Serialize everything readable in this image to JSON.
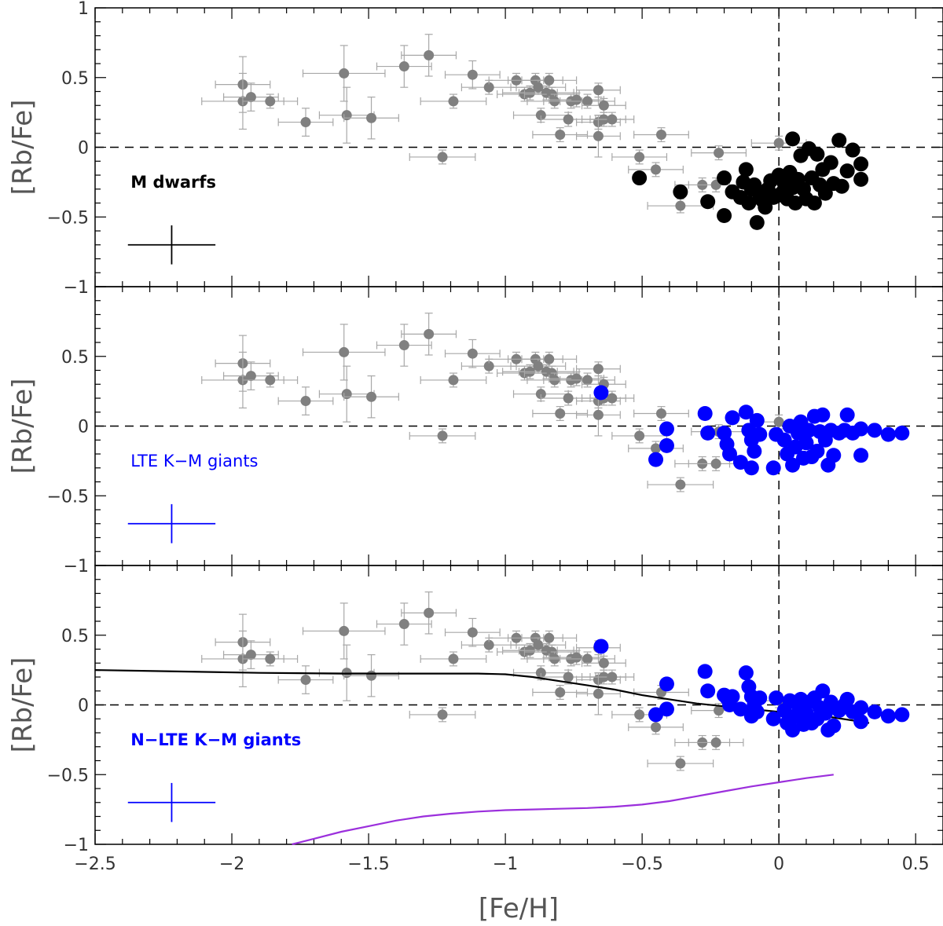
{
  "colors": {
    "literature": "#808080",
    "literature_err": "#a8a8a8",
    "m_dwarfs": "#000000",
    "giants": "#0000ff",
    "gce_model": "#000000",
    "second_model": "#9b2fdc",
    "frame": "#000000"
  },
  "chart_data": {
    "type": "scatter",
    "layout": "three stacked panels sharing the x axis",
    "xlabel": "[Fe/H]",
    "xlim": [
      -2.5,
      0.6
    ],
    "x_ticks": [
      -2.5,
      -2,
      -1.5,
      -1,
      -0.5,
      0,
      0.5
    ],
    "x_tick_labels": [
      "−2.5",
      "−2",
      "−1.5",
      "−1",
      "−0.5",
      "0",
      "0.5"
    ],
    "literature": {
      "name": "literature stars (grey)",
      "points": [
        {
          "x": -1.96,
          "y": 0.45,
          "xe": 0.1,
          "ye": 0.2
        },
        {
          "x": -1.96,
          "y": 0.33,
          "xe": 0.15,
          "ye": 0.2
        },
        {
          "x": -1.93,
          "y": 0.36,
          "xe": 0.1,
          "ye": 0.1
        },
        {
          "x": -1.86,
          "y": 0.33,
          "xe": 0.1,
          "ye": 0.05
        },
        {
          "x": -1.73,
          "y": 0.18,
          "xe": 0.1,
          "ye": 0.1
        },
        {
          "x": -1.59,
          "y": 0.53,
          "xe": 0.15,
          "ye": 0.2
        },
        {
          "x": -1.58,
          "y": 0.23,
          "xe": 0.1,
          "ye": 0.2
        },
        {
          "x": -1.49,
          "y": 0.21,
          "xe": 0.1,
          "ye": 0.15
        },
        {
          "x": -1.37,
          "y": 0.58,
          "xe": 0.1,
          "ye": 0.15
        },
        {
          "x": -1.28,
          "y": 0.66,
          "xe": 0.1,
          "ye": 0.15
        },
        {
          "x": -1.23,
          "y": -0.07,
          "xe": 0.12,
          "ye": 0.05
        },
        {
          "x": -1.19,
          "y": 0.33,
          "xe": 0.12,
          "ye": 0.05
        },
        {
          "x": -1.12,
          "y": 0.52,
          "xe": 0.1,
          "ye": 0.1
        },
        {
          "x": -1.06,
          "y": 0.43,
          "xe": 0.1,
          "ye": 0.05
        },
        {
          "x": -0.96,
          "y": 0.48,
          "xe": 0.1,
          "ye": 0.05
        },
        {
          "x": -0.93,
          "y": 0.38,
          "xe": 0.1,
          "ye": 0.05
        },
        {
          "x": -0.91,
          "y": 0.39,
          "xe": 0.1,
          "ye": 0.05
        },
        {
          "x": -0.89,
          "y": 0.48,
          "xe": 0.1,
          "ye": 0.05
        },
        {
          "x": -0.88,
          "y": 0.43,
          "xe": 0.1,
          "ye": 0.05
        },
        {
          "x": -0.87,
          "y": 0.23,
          "xe": 0.1,
          "ye": 0.05
        },
        {
          "x": -0.85,
          "y": 0.39,
          "xe": 0.1,
          "ye": 0.05
        },
        {
          "x": -0.84,
          "y": 0.48,
          "xe": 0.1,
          "ye": 0.05
        },
        {
          "x": -0.83,
          "y": 0.38,
          "xe": 0.1,
          "ye": 0.05
        },
        {
          "x": -0.82,
          "y": 0.33,
          "xe": 0.1,
          "ye": 0.05
        },
        {
          "x": -0.8,
          "y": 0.09,
          "xe": 0.1,
          "ye": 0.05
        },
        {
          "x": -0.77,
          "y": 0.2,
          "xe": 0.1,
          "ye": 0.05
        },
        {
          "x": -0.76,
          "y": 0.33,
          "xe": 0.1,
          "ye": 0.05
        },
        {
          "x": -0.74,
          "y": 0.34,
          "xe": 0.1,
          "ye": 0.05
        },
        {
          "x": -0.7,
          "y": 0.33,
          "xe": 0.1,
          "ye": 0.05
        },
        {
          "x": -0.66,
          "y": 0.41,
          "xe": 0.08,
          "ye": 0.05
        },
        {
          "x": -0.66,
          "y": 0.18,
          "xe": 0.08,
          "ye": 0.05
        },
        {
          "x": -0.66,
          "y": 0.08,
          "xe": 0.08,
          "ye": 0.15
        },
        {
          "x": -0.64,
          "y": 0.3,
          "xe": 0.08,
          "ye": 0.05
        },
        {
          "x": -0.64,
          "y": 0.2,
          "xe": 0.08,
          "ye": 0.05
        },
        {
          "x": -0.61,
          "y": 0.2,
          "xe": 0.08,
          "ye": 0.05
        },
        {
          "x": -0.51,
          "y": -0.07,
          "xe": 0.1,
          "ye": 0.05
        },
        {
          "x": -0.45,
          "y": -0.16,
          "xe": 0.1,
          "ye": 0.05
        },
        {
          "x": -0.43,
          "y": 0.09,
          "xe": 0.1,
          "ye": 0.05
        },
        {
          "x": -0.36,
          "y": -0.42,
          "xe": 0.12,
          "ye": 0.05
        },
        {
          "x": -0.28,
          "y": -0.27,
          "xe": 0.1,
          "ye": 0.05
        },
        {
          "x": -0.23,
          "y": -0.27,
          "xe": 0.1,
          "ye": 0.05
        },
        {
          "x": -0.22,
          "y": -0.04,
          "xe": 0.1,
          "ye": 0.05
        },
        {
          "x": 0.0,
          "y": 0.03,
          "xe": 0.1,
          "ye": 0.05
        }
      ]
    },
    "panels": [
      {
        "id": "m-dwarfs",
        "ylabel": "[Rb/Fe]",
        "ylim": [
          -1,
          1
        ],
        "y_ticks": [
          -1,
          -0.5,
          0,
          0.5,
          1
        ],
        "y_tick_labels": [
          "−1",
          "−0.5",
          "0",
          "0.5",
          "1"
        ],
        "label": "M dwarfs",
        "label_color": "#000000",
        "marker_color": "#000000",
        "error_bar": {
          "x": -2.22,
          "y": -0.7,
          "xe": 0.16,
          "ye": 0.14
        },
        "points": [
          {
            "x": -0.51,
            "y": -0.22
          },
          {
            "x": -0.36,
            "y": -0.32
          },
          {
            "x": -0.26,
            "y": -0.39
          },
          {
            "x": -0.2,
            "y": -0.49
          },
          {
            "x": -0.2,
            "y": -0.22
          },
          {
            "x": -0.17,
            "y": -0.32
          },
          {
            "x": -0.14,
            "y": -0.36
          },
          {
            "x": -0.13,
            "y": -0.25
          },
          {
            "x": -0.12,
            "y": -0.16
          },
          {
            "x": -0.11,
            "y": -0.4
          },
          {
            "x": -0.1,
            "y": -0.3
          },
          {
            "x": -0.09,
            "y": -0.27
          },
          {
            "x": -0.08,
            "y": -0.54
          },
          {
            "x": -0.07,
            "y": -0.34
          },
          {
            "x": -0.06,
            "y": -0.38
          },
          {
            "x": -0.05,
            "y": -0.43
          },
          {
            "x": -0.04,
            "y": -0.3
          },
          {
            "x": -0.03,
            "y": -0.24
          },
          {
            "x": -0.02,
            "y": -0.36
          },
          {
            "x": -0.01,
            "y": -0.35
          },
          {
            "x": 0.0,
            "y": -0.2
          },
          {
            "x": 0.01,
            "y": -0.33
          },
          {
            "x": 0.02,
            "y": -0.26
          },
          {
            "x": 0.03,
            "y": -0.37
          },
          {
            "x": 0.04,
            "y": -0.18
          },
          {
            "x": 0.05,
            "y": 0.06
          },
          {
            "x": 0.05,
            "y": -0.29
          },
          {
            "x": 0.06,
            "y": -0.4
          },
          {
            "x": 0.07,
            "y": -0.23
          },
          {
            "x": 0.08,
            "y": -0.06
          },
          {
            "x": 0.09,
            "y": -0.3
          },
          {
            "x": 0.1,
            "y": -0.37
          },
          {
            "x": 0.11,
            "y": -0.01
          },
          {
            "x": 0.12,
            "y": -0.22
          },
          {
            "x": 0.13,
            "y": -0.4
          },
          {
            "x": 0.14,
            "y": -0.05
          },
          {
            "x": 0.15,
            "y": -0.27
          },
          {
            "x": 0.16,
            "y": -0.16
          },
          {
            "x": 0.17,
            "y": -0.33
          },
          {
            "x": 0.19,
            "y": -0.11
          },
          {
            "x": 0.2,
            "y": -0.26
          },
          {
            "x": 0.22,
            "y": 0.05
          },
          {
            "x": 0.23,
            "y": -0.28
          },
          {
            "x": 0.25,
            "y": -0.17
          },
          {
            "x": 0.27,
            "y": -0.02
          },
          {
            "x": 0.3,
            "y": -0.12
          },
          {
            "x": 0.3,
            "y": -0.23
          }
        ]
      },
      {
        "id": "lte-giants",
        "ylabel": "[Rb/Fe]",
        "ylim": [
          -1,
          1
        ],
        "y_ticks": [
          -1,
          -0.5,
          0,
          0.5
        ],
        "y_tick_labels": [
          "−1",
          "−0.5",
          "0",
          "0.5"
        ],
        "label": "LTE K−M giants",
        "label_color": "#0000ff",
        "marker_color": "#0000ff",
        "error_bar": {
          "x": -2.22,
          "y": -0.7,
          "xe": 0.16,
          "ye": 0.14
        },
        "points": [
          {
            "x": -0.65,
            "y": 0.24
          },
          {
            "x": -0.45,
            "y": -0.24
          },
          {
            "x": -0.41,
            "y": -0.02
          },
          {
            "x": -0.41,
            "y": -0.14
          },
          {
            "x": -0.27,
            "y": 0.09
          },
          {
            "x": -0.26,
            "y": -0.05
          },
          {
            "x": -0.2,
            "y": -0.05
          },
          {
            "x": -0.19,
            "y": -0.13
          },
          {
            "x": -0.18,
            "y": -0.2
          },
          {
            "x": -0.17,
            "y": 0.06
          },
          {
            "x": -0.14,
            "y": -0.26
          },
          {
            "x": -0.12,
            "y": 0.1
          },
          {
            "x": -0.11,
            "y": -0.03
          },
          {
            "x": -0.1,
            "y": -0.1
          },
          {
            "x": -0.1,
            "y": -0.3
          },
          {
            "x": -0.09,
            "y": -0.18
          },
          {
            "x": -0.08,
            "y": 0.04
          },
          {
            "x": -0.07,
            "y": -0.06
          },
          {
            "x": -0.02,
            "y": -0.3
          },
          {
            "x": -0.01,
            "y": -0.06
          },
          {
            "x": 0.02,
            "y": -0.1
          },
          {
            "x": 0.03,
            "y": -0.2
          },
          {
            "x": 0.04,
            "y": 0.0
          },
          {
            "x": 0.05,
            "y": -0.28
          },
          {
            "x": 0.06,
            "y": -0.15
          },
          {
            "x": 0.07,
            "y": -0.05
          },
          {
            "x": 0.08,
            "y": 0.03
          },
          {
            "x": 0.09,
            "y": -0.23
          },
          {
            "x": 0.1,
            "y": -0.12
          },
          {
            "x": 0.11,
            "y": -0.03
          },
          {
            "x": 0.12,
            "y": -0.22
          },
          {
            "x": 0.13,
            "y": 0.07
          },
          {
            "x": 0.14,
            "y": -0.18
          },
          {
            "x": 0.15,
            "y": -0.04
          },
          {
            "x": 0.16,
            "y": 0.08
          },
          {
            "x": 0.17,
            "y": -0.1
          },
          {
            "x": 0.18,
            "y": -0.28
          },
          {
            "x": 0.19,
            "y": -0.03
          },
          {
            "x": 0.2,
            "y": -0.21
          },
          {
            "x": 0.22,
            "y": -0.05
          },
          {
            "x": 0.24,
            "y": -0.03
          },
          {
            "x": 0.25,
            "y": 0.08
          },
          {
            "x": 0.27,
            "y": -0.05
          },
          {
            "x": 0.3,
            "y": -0.21
          },
          {
            "x": 0.3,
            "y": -0.02
          },
          {
            "x": 0.35,
            "y": -0.03
          },
          {
            "x": 0.4,
            "y": -0.06
          },
          {
            "x": 0.45,
            "y": -0.05
          }
        ]
      },
      {
        "id": "nlte-giants",
        "ylabel": "[Rb/Fe]",
        "ylim": [
          -1,
          1
        ],
        "y_ticks": [
          -1,
          -0.5,
          0,
          0.5
        ],
        "y_tick_labels": [
          "−1",
          "−0.5",
          "0",
          "0.5"
        ],
        "label": "N−LTE  K−M giants",
        "label_color": "#0000ff",
        "marker_color": "#0000ff",
        "error_bar": {
          "x": -2.22,
          "y": -0.7,
          "xe": 0.16,
          "ye": 0.14
        },
        "points": [
          {
            "x": -0.65,
            "y": 0.42
          },
          {
            "x": -0.45,
            "y": -0.07
          },
          {
            "x": -0.41,
            "y": -0.03
          },
          {
            "x": -0.41,
            "y": 0.15
          },
          {
            "x": -0.27,
            "y": 0.24
          },
          {
            "x": -0.26,
            "y": 0.1
          },
          {
            "x": -0.2,
            "y": 0.07
          },
          {
            "x": -0.19,
            "y": 0.05
          },
          {
            "x": -0.18,
            "y": 0.0
          },
          {
            "x": -0.17,
            "y": 0.06
          },
          {
            "x": -0.14,
            "y": -0.03
          },
          {
            "x": -0.12,
            "y": 0.23
          },
          {
            "x": -0.11,
            "y": 0.13
          },
          {
            "x": -0.1,
            "y": 0.06
          },
          {
            "x": -0.1,
            "y": -0.08
          },
          {
            "x": -0.09,
            "y": 0.0
          },
          {
            "x": -0.08,
            "y": -0.05
          },
          {
            "x": -0.07,
            "y": 0.05
          },
          {
            "x": -0.02,
            "y": -0.1
          },
          {
            "x": -0.01,
            "y": 0.05
          },
          {
            "x": 0.02,
            "y": -0.04
          },
          {
            "x": 0.03,
            "y": -0.13
          },
          {
            "x": 0.04,
            "y": 0.03
          },
          {
            "x": 0.05,
            "y": -0.18
          },
          {
            "x": 0.06,
            "y": -0.08
          },
          {
            "x": 0.07,
            "y": 0.0
          },
          {
            "x": 0.08,
            "y": 0.04
          },
          {
            "x": 0.09,
            "y": -0.14
          },
          {
            "x": 0.1,
            "y": -0.06
          },
          {
            "x": 0.11,
            "y": 0.02
          },
          {
            "x": 0.12,
            "y": -0.13
          },
          {
            "x": 0.13,
            "y": 0.05
          },
          {
            "x": 0.14,
            "y": -0.1
          },
          {
            "x": 0.15,
            "y": -0.02
          },
          {
            "x": 0.16,
            "y": 0.1
          },
          {
            "x": 0.17,
            "y": -0.06
          },
          {
            "x": 0.18,
            "y": -0.18
          },
          {
            "x": 0.19,
            "y": 0.02
          },
          {
            "x": 0.2,
            "y": -0.15
          },
          {
            "x": 0.22,
            "y": -0.04
          },
          {
            "x": 0.24,
            "y": 0.0
          },
          {
            "x": 0.25,
            "y": 0.04
          },
          {
            "x": 0.27,
            "y": -0.05
          },
          {
            "x": 0.3,
            "y": -0.12
          },
          {
            "x": 0.3,
            "y": -0.02
          },
          {
            "x": 0.35,
            "y": -0.05
          },
          {
            "x": 0.4,
            "y": -0.08
          },
          {
            "x": 0.45,
            "y": -0.07
          }
        ],
        "lines": [
          {
            "name": "GCE model",
            "color": "#000000",
            "x": [
              -2.5,
              -2.2,
              -1.9,
              -1.6,
              -1.3,
              -1.1,
              -1.0,
              -0.9,
              -0.8,
              -0.7,
              -0.6,
              -0.5,
              -0.4,
              -0.3,
              -0.2,
              -0.1,
              0.0,
              0.1,
              0.2,
              0.33
            ],
            "y": [
              0.25,
              0.24,
              0.23,
              0.225,
              0.225,
              0.225,
              0.22,
              0.2,
              0.17,
              0.14,
              0.11,
              0.07,
              0.04,
              0.01,
              -0.01,
              -0.03,
              -0.05,
              -0.07,
              -0.09,
              -0.13
            ]
          },
          {
            "name": "second model",
            "color": "#9b2fdc",
            "x": [
              -1.78,
              -1.7,
              -1.6,
              -1.5,
              -1.4,
              -1.3,
              -1.2,
              -1.1,
              -1.0,
              -0.9,
              -0.8,
              -0.7,
              -0.6,
              -0.5,
              -0.4,
              -0.3,
              -0.2,
              -0.1,
              0.0,
              0.1,
              0.2
            ],
            "y": [
              -1.0,
              -0.96,
              -0.91,
              -0.87,
              -0.83,
              -0.8,
              -0.78,
              -0.765,
              -0.755,
              -0.75,
              -0.745,
              -0.74,
              -0.73,
              -0.715,
              -0.69,
              -0.655,
              -0.62,
              -0.585,
              -0.555,
              -0.525,
              -0.5
            ]
          }
        ]
      }
    ]
  }
}
